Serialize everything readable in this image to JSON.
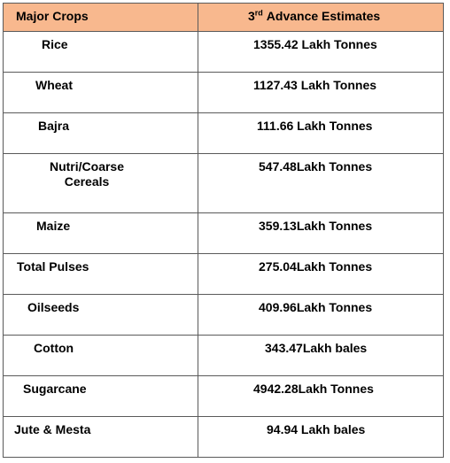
{
  "table": {
    "header": [
      "Major Crops",
      {
        "number": "3",
        "suffix": "rd",
        "text": "Advance Estimates"
      }
    ],
    "rows": [
      [
        "Rice",
        "1355.42 Lakh Tonnes"
      ],
      [
        "Wheat",
        "1127.43 Lakh Tonnes"
      ],
      [
        "Bajra",
        "111.66 Lakh Tonnes"
      ],
      [
        "Nutri/Coarse Cereals",
        "547.48Lakh Tonnes"
      ],
      [
        "Maize",
        "359.13Lakh Tonnes"
      ],
      [
        "Total Pulses",
        "275.04Lakh Tonnes"
      ],
      [
        "Oilseeds",
        "409.96Lakh Tonnes"
      ],
      [
        "Cotton",
        "343.47Lakh bales"
      ],
      [
        "Sugarcane",
        "4942.28Lakh Tonnes"
      ],
      [
        "Jute & Mesta",
        "94.94 Lakh bales"
      ]
    ]
  }
}
